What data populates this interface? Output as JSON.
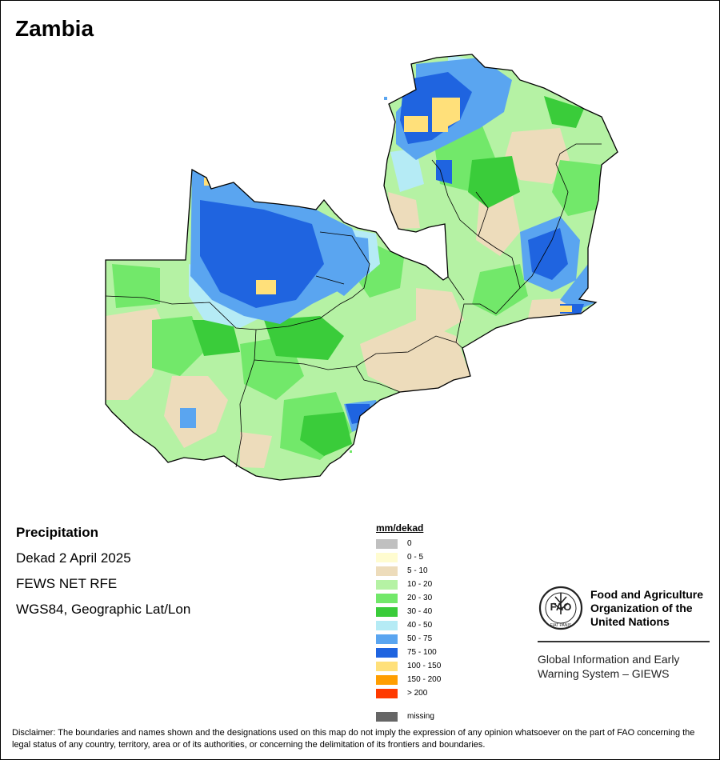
{
  "title": "Zambia",
  "metadata": {
    "variable": "Precipitation",
    "period": "Dekad 2 April 2025",
    "source": "FEWS NET RFE",
    "projection": "WGS84, Geographic Lat/Lon"
  },
  "legend": {
    "title": "mm/dekad",
    "classes": [
      {
        "label": "0",
        "color": "#c0c0c0"
      },
      {
        "label": "0 - 5",
        "color": "#fffcd0"
      },
      {
        "label": "5 - 10",
        "color": "#eddcbb"
      },
      {
        "label": "10 - 20",
        "color": "#b5f2a4"
      },
      {
        "label": "20 - 30",
        "color": "#72e86a"
      },
      {
        "label": "30 - 40",
        "color": "#3acc3a"
      },
      {
        "label": "40 - 50",
        "color": "#b5ebf5"
      },
      {
        "label": "50 - 75",
        "color": "#5aa5f0"
      },
      {
        "label": "75 - 100",
        "color": "#1f64e0"
      },
      {
        "label": "100 - 150",
        "color": "#ffe07a"
      },
      {
        "label": "150 - 200",
        "color": "#ff9e00"
      },
      {
        "label": "> 200",
        "color": "#ff3a00"
      }
    ],
    "missing": {
      "label": "missing",
      "color": "#666666"
    }
  },
  "organization": {
    "name_line1": "Food and Agriculture",
    "name_line2": "Organization of the",
    "name_line3": "United Nations",
    "system_line1": "Global Information and Early",
    "system_line2": "Warning System – GIEWS",
    "logo_letters": "FAO",
    "logo_motto": "FIAT PANIS"
  },
  "disclaimer": "Disclaimer: The boundaries and names shown and the designations used on this map do not imply the expression of any opinion whatsoever on the part of FAO concerning the legal status of any country, territory, area or of its authorities, or concerning the delimitation of its frontiers and boundaries."
}
